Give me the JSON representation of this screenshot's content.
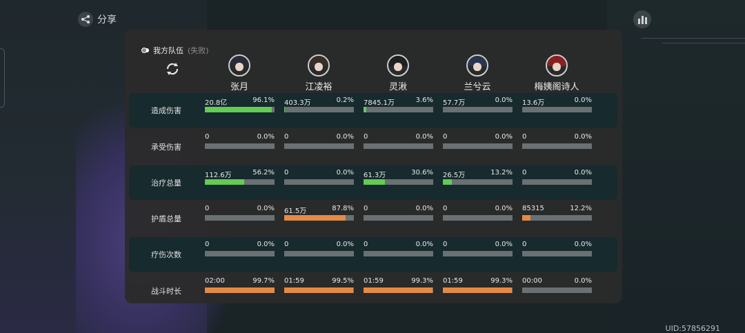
{
  "header": {
    "share_label": "分享"
  },
  "footer": {
    "uid": "UID:57856291"
  },
  "panel": {
    "team_label": "我方队伍",
    "result_label": "(失败)",
    "members": [
      {
        "name": "张月",
        "hair": "#2b2a3a",
        "ring": "#cfcfcf"
      },
      {
        "name": "江凌裕",
        "hair": "#3a2e2a",
        "ring": "#cfcfcf"
      },
      {
        "name": "灵湫",
        "hair": "#1f1f24",
        "ring": "#cfcfcf"
      },
      {
        "name": "兰兮云",
        "hair": "#2a3550",
        "ring": "#cfcfcf"
      },
      {
        "name": "梅姨阁诗人",
        "hair": "#8a1f1f",
        "ring": "#cfcfcf"
      }
    ],
    "colors": {
      "green": "#62cc55",
      "orange": "#e58a45",
      "track": "#6a7173"
    },
    "stats": [
      {
        "label": "造成伤害",
        "color": "green",
        "cells": [
          {
            "value": "20.8亿",
            "pct": "96.1%",
            "fill": 96.1
          },
          {
            "value": "403.3万",
            "pct": "0.2%",
            "fill": 0.2
          },
          {
            "value": "7845.1万",
            "pct": "3.6%",
            "fill": 3.6
          },
          {
            "value": "57.7万",
            "pct": "0.0%",
            "fill": 0.0
          },
          {
            "value": "13.6万",
            "pct": "0.0%",
            "fill": 0.0
          }
        ]
      },
      {
        "label": "承受伤害",
        "color": "green",
        "cells": [
          {
            "value": "0",
            "pct": "0.0%",
            "fill": 0
          },
          {
            "value": "0",
            "pct": "0.0%",
            "fill": 0
          },
          {
            "value": "0",
            "pct": "0.0%",
            "fill": 0
          },
          {
            "value": "0",
            "pct": "0.0%",
            "fill": 0
          },
          {
            "value": "0",
            "pct": "0.0%",
            "fill": 0
          }
        ]
      },
      {
        "label": "治疗总量",
        "color": "green",
        "cells": [
          {
            "value": "112.6万",
            "pct": "56.2%",
            "fill": 56.2
          },
          {
            "value": "0",
            "pct": "0.0%",
            "fill": 0
          },
          {
            "value": "61.3万",
            "pct": "30.6%",
            "fill": 30.6
          },
          {
            "value": "26.5万",
            "pct": "13.2%",
            "fill": 13.2
          },
          {
            "value": "0",
            "pct": "0.0%",
            "fill": 0
          }
        ]
      },
      {
        "label": "护盾总量",
        "color": "orange",
        "cells": [
          {
            "value": "0",
            "pct": "0.0%",
            "fill": 0
          },
          {
            "value": "61.5万",
            "pct": "87.8%",
            "fill": 87.8
          },
          {
            "value": "0",
            "pct": "0.0%",
            "fill": 0
          },
          {
            "value": "0",
            "pct": "0.0%",
            "fill": 0
          },
          {
            "value": "85315",
            "pct": "12.2%",
            "fill": 12.2
          }
        ]
      },
      {
        "label": "疗伤次数",
        "color": "orange",
        "cells": [
          {
            "value": "0",
            "pct": "0.0%",
            "fill": 0
          },
          {
            "value": "0",
            "pct": "0.0%",
            "fill": 0
          },
          {
            "value": "0",
            "pct": "0.0%",
            "fill": 0
          },
          {
            "value": "0",
            "pct": "0.0%",
            "fill": 0
          },
          {
            "value": "0",
            "pct": "0.0%",
            "fill": 0
          }
        ]
      },
      {
        "label": "战斗时长",
        "color": "orange",
        "cells": [
          {
            "value": "02:00",
            "pct": "99.7%",
            "fill": 99.7
          },
          {
            "value": "01:59",
            "pct": "99.5%",
            "fill": 99.5
          },
          {
            "value": "01:59",
            "pct": "99.3%",
            "fill": 99.3
          },
          {
            "value": "01:59",
            "pct": "99.3%",
            "fill": 99.3
          },
          {
            "value": "00:00",
            "pct": "0.0%",
            "fill": 0
          }
        ]
      }
    ]
  }
}
